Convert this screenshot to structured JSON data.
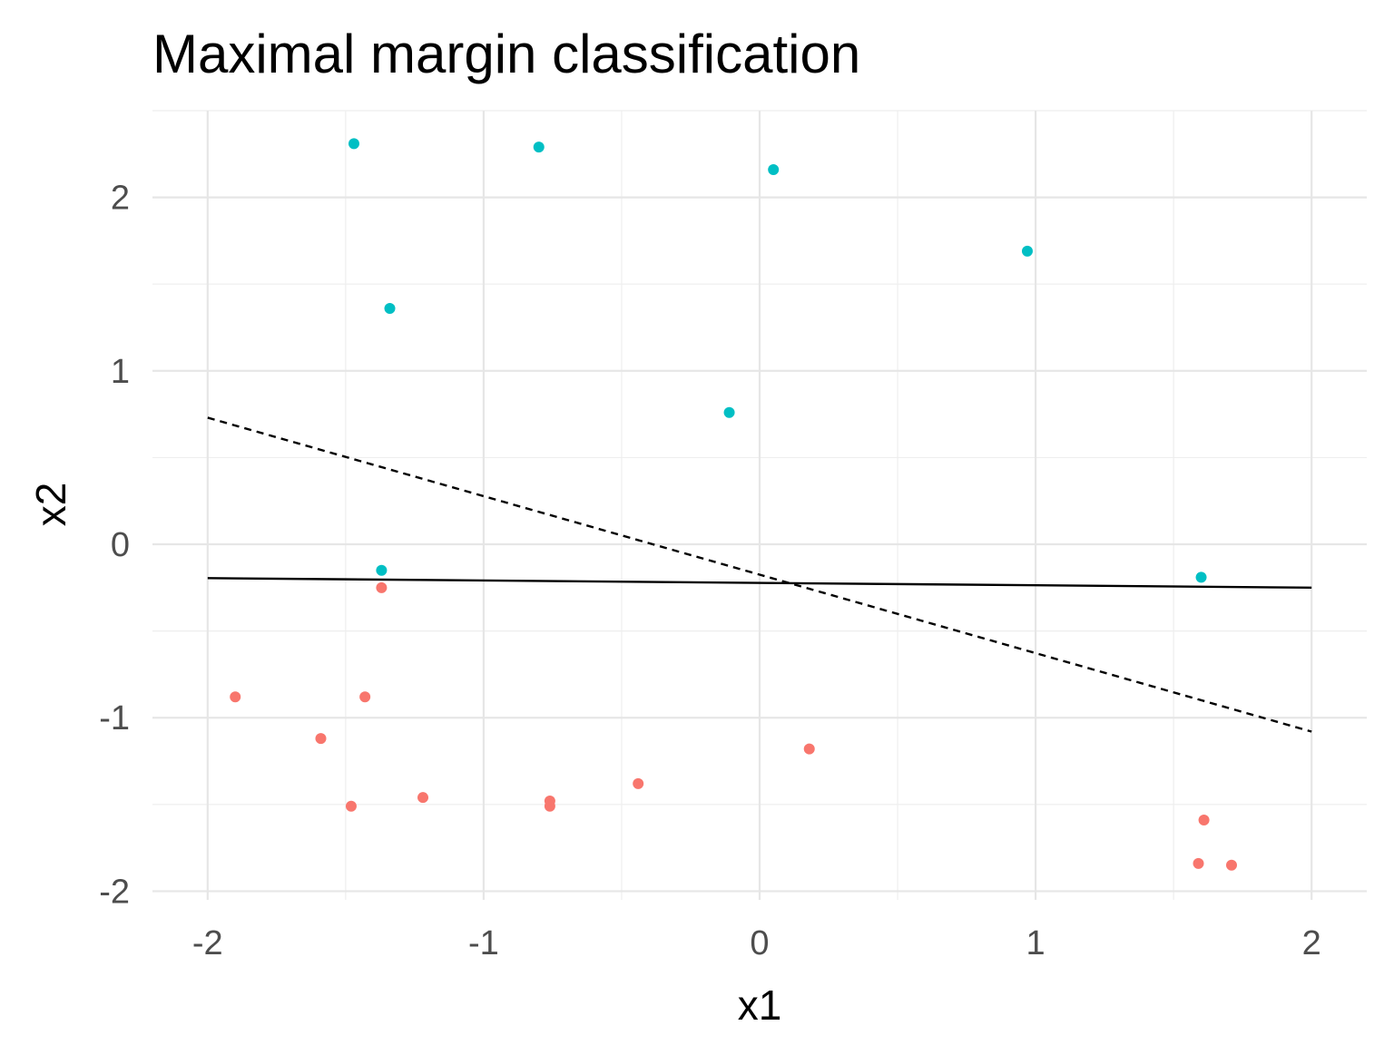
{
  "chart_data": {
    "type": "scatter",
    "title": "Maximal margin classification",
    "xlabel": "x1",
    "ylabel": "x2",
    "xlim": [
      -2.2,
      2.2
    ],
    "ylim": [
      -2.05,
      2.5
    ],
    "xticks": [
      -2,
      -1,
      0,
      1,
      2
    ],
    "xtick_labels": [
      "-2",
      "-1",
      "0",
      "1",
      "2"
    ],
    "yticks": [
      -2,
      -1,
      0,
      1,
      2
    ],
    "ytick_labels": [
      "-2",
      "-1",
      "0",
      "1",
      "2"
    ],
    "grid": true,
    "legend": "none",
    "colors": {
      "class_a": "#00bfc4",
      "class_b": "#f8766d",
      "line": "#000000"
    },
    "series": [
      {
        "class": "a",
        "color": "#00bfc4",
        "points": [
          [
            -1.47,
            2.31
          ],
          [
            -0.8,
            2.29
          ],
          [
            0.05,
            2.16
          ],
          [
            0.97,
            1.69
          ],
          [
            -1.34,
            1.36
          ],
          [
            -0.11,
            0.76
          ],
          [
            -1.37,
            -0.15
          ],
          [
            1.6,
            -0.19
          ]
        ]
      },
      {
        "class": "b",
        "color": "#f8766d",
        "points": [
          [
            -1.37,
            -0.25
          ],
          [
            -1.9,
            -0.88
          ],
          [
            -1.43,
            -0.88
          ],
          [
            -1.59,
            -1.12
          ],
          [
            -1.48,
            -1.51
          ],
          [
            -1.22,
            -1.46
          ],
          [
            -0.76,
            -1.48
          ],
          [
            -0.76,
            -1.51
          ],
          [
            -0.44,
            -1.38
          ],
          [
            0.18,
            -1.18
          ],
          [
            1.61,
            -1.59
          ],
          [
            1.59,
            -1.84
          ],
          [
            1.71,
            -1.85
          ]
        ]
      }
    ],
    "lines": [
      {
        "style": "solid",
        "x": [
          -2,
          2
        ],
        "y": [
          -0.195,
          -0.25
        ]
      },
      {
        "style": "dashed",
        "x": [
          -2,
          2
        ],
        "y": [
          0.73,
          -1.08
        ]
      }
    ]
  }
}
